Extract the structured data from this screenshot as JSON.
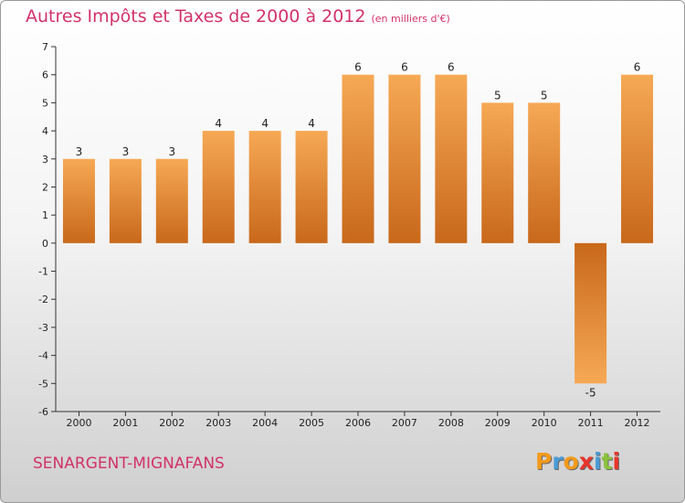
{
  "header": {
    "title": "Autres Impôts et Taxes de 2000 à 2012",
    "unit": "(en milliers d'€)"
  },
  "footer": {
    "commune": "SENARGENT-MIGNAFANS",
    "logo_letters": [
      "P",
      "r",
      "o",
      "x",
      "i",
      "t",
      "i"
    ],
    "logo_colors": [
      "#f29a1b",
      "#4a9bd6",
      "#f29a1b",
      "#e8352b",
      "#4a9bd6",
      "#8ac33b",
      "#e8352b"
    ]
  },
  "colors": {
    "bar_light": "#f6a955",
    "bar_dark": "#c8681a",
    "title": "#d2326a"
  },
  "chart_data": {
    "type": "bar",
    "categories": [
      "2000",
      "2001",
      "2002",
      "2003",
      "2004",
      "2005",
      "2006",
      "2007",
      "2008",
      "2009",
      "2010",
      "2011",
      "2012"
    ],
    "values": [
      3,
      3,
      3,
      4,
      4,
      4,
      6,
      6,
      6,
      5,
      5,
      -5,
      6
    ],
    "ylim": [
      -6,
      7
    ],
    "yticks": [
      7,
      6,
      5,
      4,
      3,
      2,
      1,
      0,
      -1,
      -2,
      -3,
      -4,
      -5,
      -6
    ],
    "grid": false
  }
}
